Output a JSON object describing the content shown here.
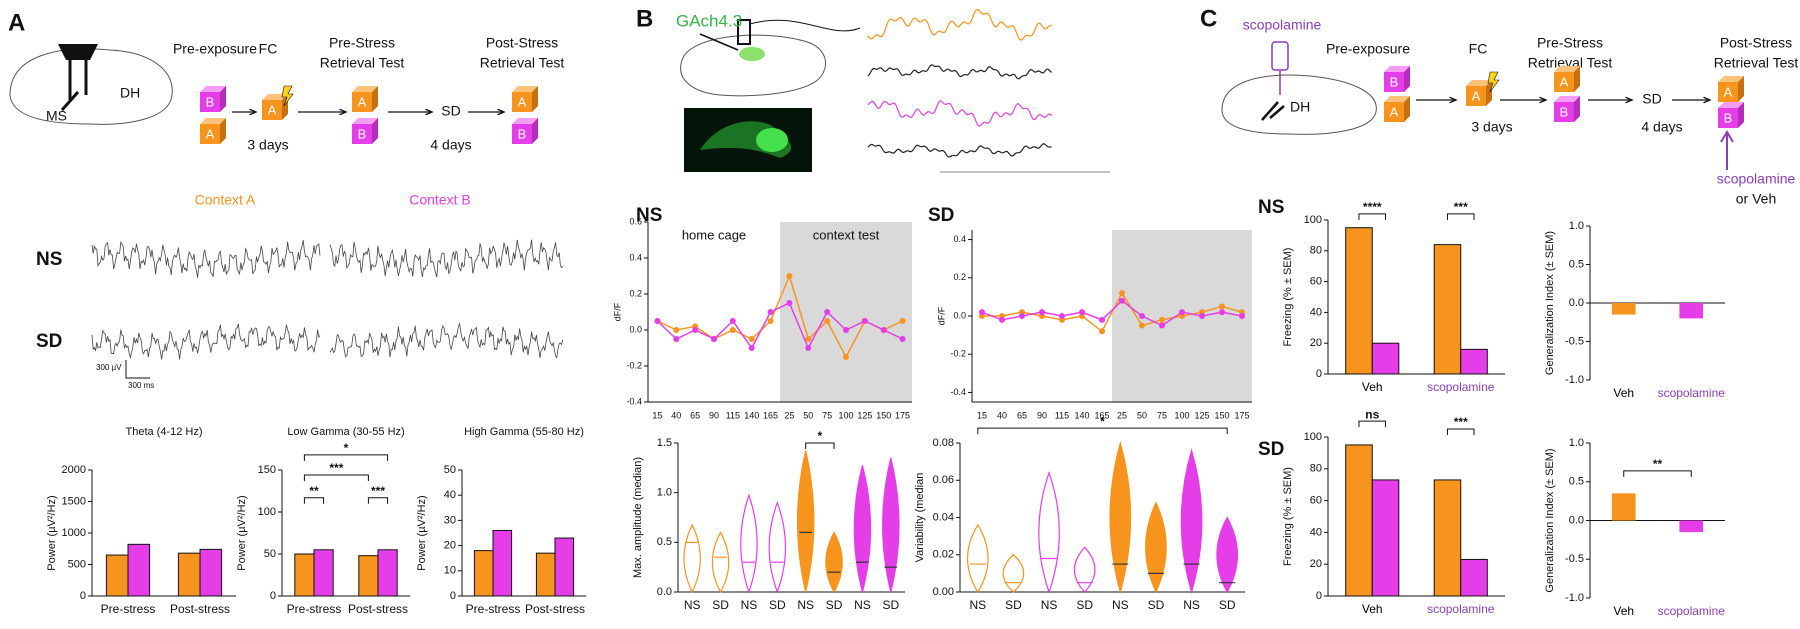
{
  "panel_a": {
    "letter": "A",
    "brain_labels": [
      "DH",
      "MS"
    ],
    "steps": [
      "Pre-exposure",
      "FC"
    ],
    "pre_stress": [
      "Pre-Stress",
      "Retrieval Test"
    ],
    "post_stress": [
      "Post-Stress",
      "Retrieval Test"
    ],
    "sd": "SD",
    "intervals": [
      "3 days",
      "4 days"
    ],
    "boxes": [
      "B",
      "A"
    ],
    "contexts": [
      "Context A",
      "Context B"
    ],
    "groups": [
      "NS",
      "SD"
    ],
    "scale": [
      "300 µV",
      "300 ms"
    ]
  },
  "panel_b": {
    "letter": "B",
    "sensor": "GAch4.3"
  },
  "panel_c": {
    "letter": "C",
    "drug": "scopolamine",
    "brain_label": "DH",
    "steps": [
      "Pre-exposure",
      "FC"
    ],
    "pre_stress": [
      "Pre-Stress",
      "Retrieval Test"
    ],
    "post_stress": [
      "Post-Stress",
      "Retrieval Test"
    ],
    "sd": "SD",
    "intervals": [
      "3 days",
      "4 days"
    ],
    "injection": [
      "scopolamine",
      "or Veh"
    ]
  },
  "chart_data": [
    {
      "type": "bar",
      "title": "Theta (4-12 Hz)",
      "ylabel": "Power (µV²/Hz)",
      "categories": [
        "Pre-stress",
        "Post-stress"
      ],
      "series": [
        {
          "color": "#f7941d",
          "values": [
            650,
            680
          ]
        },
        {
          "color": "#e53ee8",
          "values": [
            820,
            740
          ]
        }
      ],
      "ylim": [
        0,
        2000
      ],
      "yticks": [
        0,
        500,
        1000,
        1500,
        2000
      ],
      "annotations": []
    },
    {
      "type": "bar",
      "title": "Low Gamma (30-55 Hz)",
      "ylabel": "Power (µV²/Hz)",
      "categories": [
        "Pre-stress",
        "Post-stress"
      ],
      "series": [
        {
          "color": "#f7941d",
          "values": [
            50,
            48
          ]
        },
        {
          "color": "#e53ee8",
          "values": [
            55,
            55
          ]
        }
      ],
      "ylim": [
        0,
        150
      ],
      "yticks": [
        0,
        50,
        100,
        150
      ],
      "annotations": [
        "**",
        "***",
        "*",
        "***"
      ]
    },
    {
      "type": "bar",
      "title": "High Gamma (55-80 Hz)",
      "ylabel": "Power (µV²/Hz)",
      "categories": [
        "Pre-stress",
        "Post-stress"
      ],
      "series": [
        {
          "color": "#f7941d",
          "values": [
            18,
            17
          ]
        },
        {
          "color": "#e53ee8",
          "values": [
            26,
            23
          ]
        }
      ],
      "ylim": [
        0,
        50
      ],
      "yticks": [
        0,
        10,
        20,
        30,
        40,
        50
      ],
      "annotations": []
    },
    {
      "type": "line",
      "title": "NS",
      "regions": [
        "home cage",
        "context test"
      ],
      "ylabel": "dF/F",
      "categories": [
        "15",
        "40",
        "65",
        "90",
        "115",
        "140",
        "165",
        "25",
        "50",
        "75",
        "100",
        "125",
        "150",
        "175"
      ],
      "series": [
        {
          "color": "#f7941d",
          "values": [
            0.05,
            0.0,
            0.02,
            -0.05,
            0.0,
            -0.05,
            0.05,
            0.3,
            -0.05,
            0.05,
            -0.15,
            0.05,
            0.0,
            0.05
          ]
        },
        {
          "color": "#e53ee8",
          "values": [
            0.05,
            -0.05,
            0.0,
            -0.05,
            0.05,
            -0.1,
            0.1,
            0.15,
            -0.1,
            0.1,
            0.0,
            0.05,
            0.0,
            -0.05
          ]
        }
      ],
      "ylim": [
        -0.4,
        0.6
      ],
      "yticks": [
        -0.4,
        -0.2,
        {
          "value": 0,
          "label": "0.0"
        },
        0.2,
        0.4,
        0.6
      ],
      "annotations": []
    },
    {
      "type": "line",
      "title": "SD",
      "ylabel": "dF/F",
      "categories": [
        "15",
        "40",
        "65",
        "90",
        "115",
        "140",
        "165",
        "25",
        "50",
        "75",
        "100",
        "125",
        "150",
        "175"
      ],
      "series": [
        {
          "color": "#f7941d",
          "values": [
            0.0,
            0.0,
            0.02,
            0.0,
            -0.02,
            0.0,
            -0.08,
            0.12,
            -0.05,
            -0.02,
            0.0,
            0.02,
            0.05,
            0.02
          ]
        },
        {
          "color": "#e53ee8",
          "values": [
            0.02,
            -0.02,
            0.0,
            0.02,
            0.0,
            0.02,
            -0.02,
            0.08,
            0.0,
            -0.05,
            0.02,
            0.0,
            0.02,
            0.0
          ]
        }
      ],
      "ylim": [
        -0.45,
        0.45
      ],
      "yticks": [
        -0.4,
        -0.2,
        {
          "value": 0,
          "label": "0.0"
        },
        0.2,
        0.4
      ],
      "annotations": []
    },
    {
      "type": "violin",
      "ylabel": "Max. amplitude (median)",
      "categories": [
        "NS",
        "SD",
        "NS",
        "SD",
        "NS",
        "SD",
        "NS",
        "SD"
      ],
      "values": [
        0.5,
        0.35,
        0.3,
        0.3,
        0.6,
        0.2,
        0.3,
        0.25
      ],
      "colors": [
        "#f7941d",
        "#f7941d",
        "#e53ee8",
        "#e53ee8",
        "#f7941d",
        "#f7941d",
        "#e53ee8",
        "#e53ee8"
      ],
      "filled": [
        false,
        false,
        false,
        false,
        true,
        true,
        true,
        true
      ],
      "ylim": [
        0,
        1.5
      ],
      "yticks": [
        {
          "value": 0,
          "label": "0.0"
        },
        0.5,
        {
          "value": 1,
          "label": "1.0"
        },
        1.5
      ],
      "annotations": [
        "*"
      ]
    },
    {
      "type": "violin",
      "ylabel": "Variability (median",
      "categories": [
        "NS",
        "SD",
        "NS",
        "SD",
        "NS",
        "SD",
        "NS",
        "SD"
      ],
      "values": [
        0.015,
        0.005,
        0.018,
        0.005,
        0.015,
        0.01,
        0.015,
        0.005
      ],
      "colors": [
        "#f7941d",
        "#f7941d",
        "#e53ee8",
        "#e53ee8",
        "#f7941d",
        "#f7941d",
        "#e53ee8",
        "#e53ee8"
      ],
      "filled": [
        false,
        false,
        false,
        false,
        true,
        true,
        true,
        true
      ],
      "ylim": [
        0,
        0.08
      ],
      "yticks": [
        {
          "value": 0,
          "label": "0.00"
        },
        0.02,
        0.04,
        0.06,
        0.08
      ],
      "annotations": [
        "*"
      ]
    },
    {
      "type": "bar",
      "title": "NS",
      "ylabel": "Freezing (% ± SEM)",
      "categories": [
        "Veh",
        "scopolamine"
      ],
      "category_colors": [
        "#000000",
        "#8a3fb5"
      ],
      "series": [
        {
          "color": "#f7941d",
          "values": [
            95,
            84
          ]
        },
        {
          "color": "#e53ee8",
          "values": [
            20,
            16
          ]
        }
      ],
      "ylim": [
        0,
        100
      ],
      "yticks": [
        0,
        20,
        40,
        60,
        80,
        100
      ],
      "annotations": [
        "****",
        "***"
      ]
    },
    {
      "type": "bar",
      "ylabel": "Generalization Index (± SEM)",
      "categories": [
        "Veh",
        "scopolamine"
      ],
      "category_colors": [
        "#000000",
        "#8a3fb5"
      ],
      "values": [
        -0.15,
        -0.2
      ],
      "colors": [
        "#f7941d",
        "#e53ee8"
      ],
      "ylim": [
        -1,
        1
      ],
      "yticks": [
        {
          "value": -1,
          "label": "-1.0"
        },
        -0.5,
        {
          "value": 0,
          "label": "0.0"
        },
        0.5,
        {
          "value": 1,
          "label": "1.0"
        }
      ],
      "annotations": []
    },
    {
      "type": "bar",
      "title": "SD",
      "ylabel": "Freezing (% ± SEM)",
      "categories": [
        "Veh",
        "scopolamine"
      ],
      "category_colors": [
        "#000000",
        "#8a3fb5"
      ],
      "series": [
        {
          "color": "#f7941d",
          "values": [
            95,
            73
          ]
        },
        {
          "color": "#e53ee8",
          "values": [
            73,
            23
          ]
        }
      ],
      "ylim": [
        0,
        100
      ],
      "yticks": [
        0,
        20,
        40,
        60,
        80,
        100
      ],
      "annotations": [
        "ns",
        "***"
      ]
    },
    {
      "type": "bar",
      "ylabel": "Generalization Index (± SEM)",
      "categories": [
        "Veh",
        "scopolamine"
      ],
      "category_colors": [
        "#000000",
        "#8a3fb5"
      ],
      "values": [
        0.35,
        -0.15
      ],
      "colors": [
        "#f7941d",
        "#e53ee8"
      ],
      "ylim": [
        -1,
        1
      ],
      "yticks": [
        {
          "value": -1,
          "label": "-1.0"
        },
        -0.5,
        {
          "value": 0,
          "label": "0.0"
        },
        0.5,
        {
          "value": 1,
          "label": "1.0"
        }
      ],
      "annotations": [
        "**"
      ]
    }
  ]
}
